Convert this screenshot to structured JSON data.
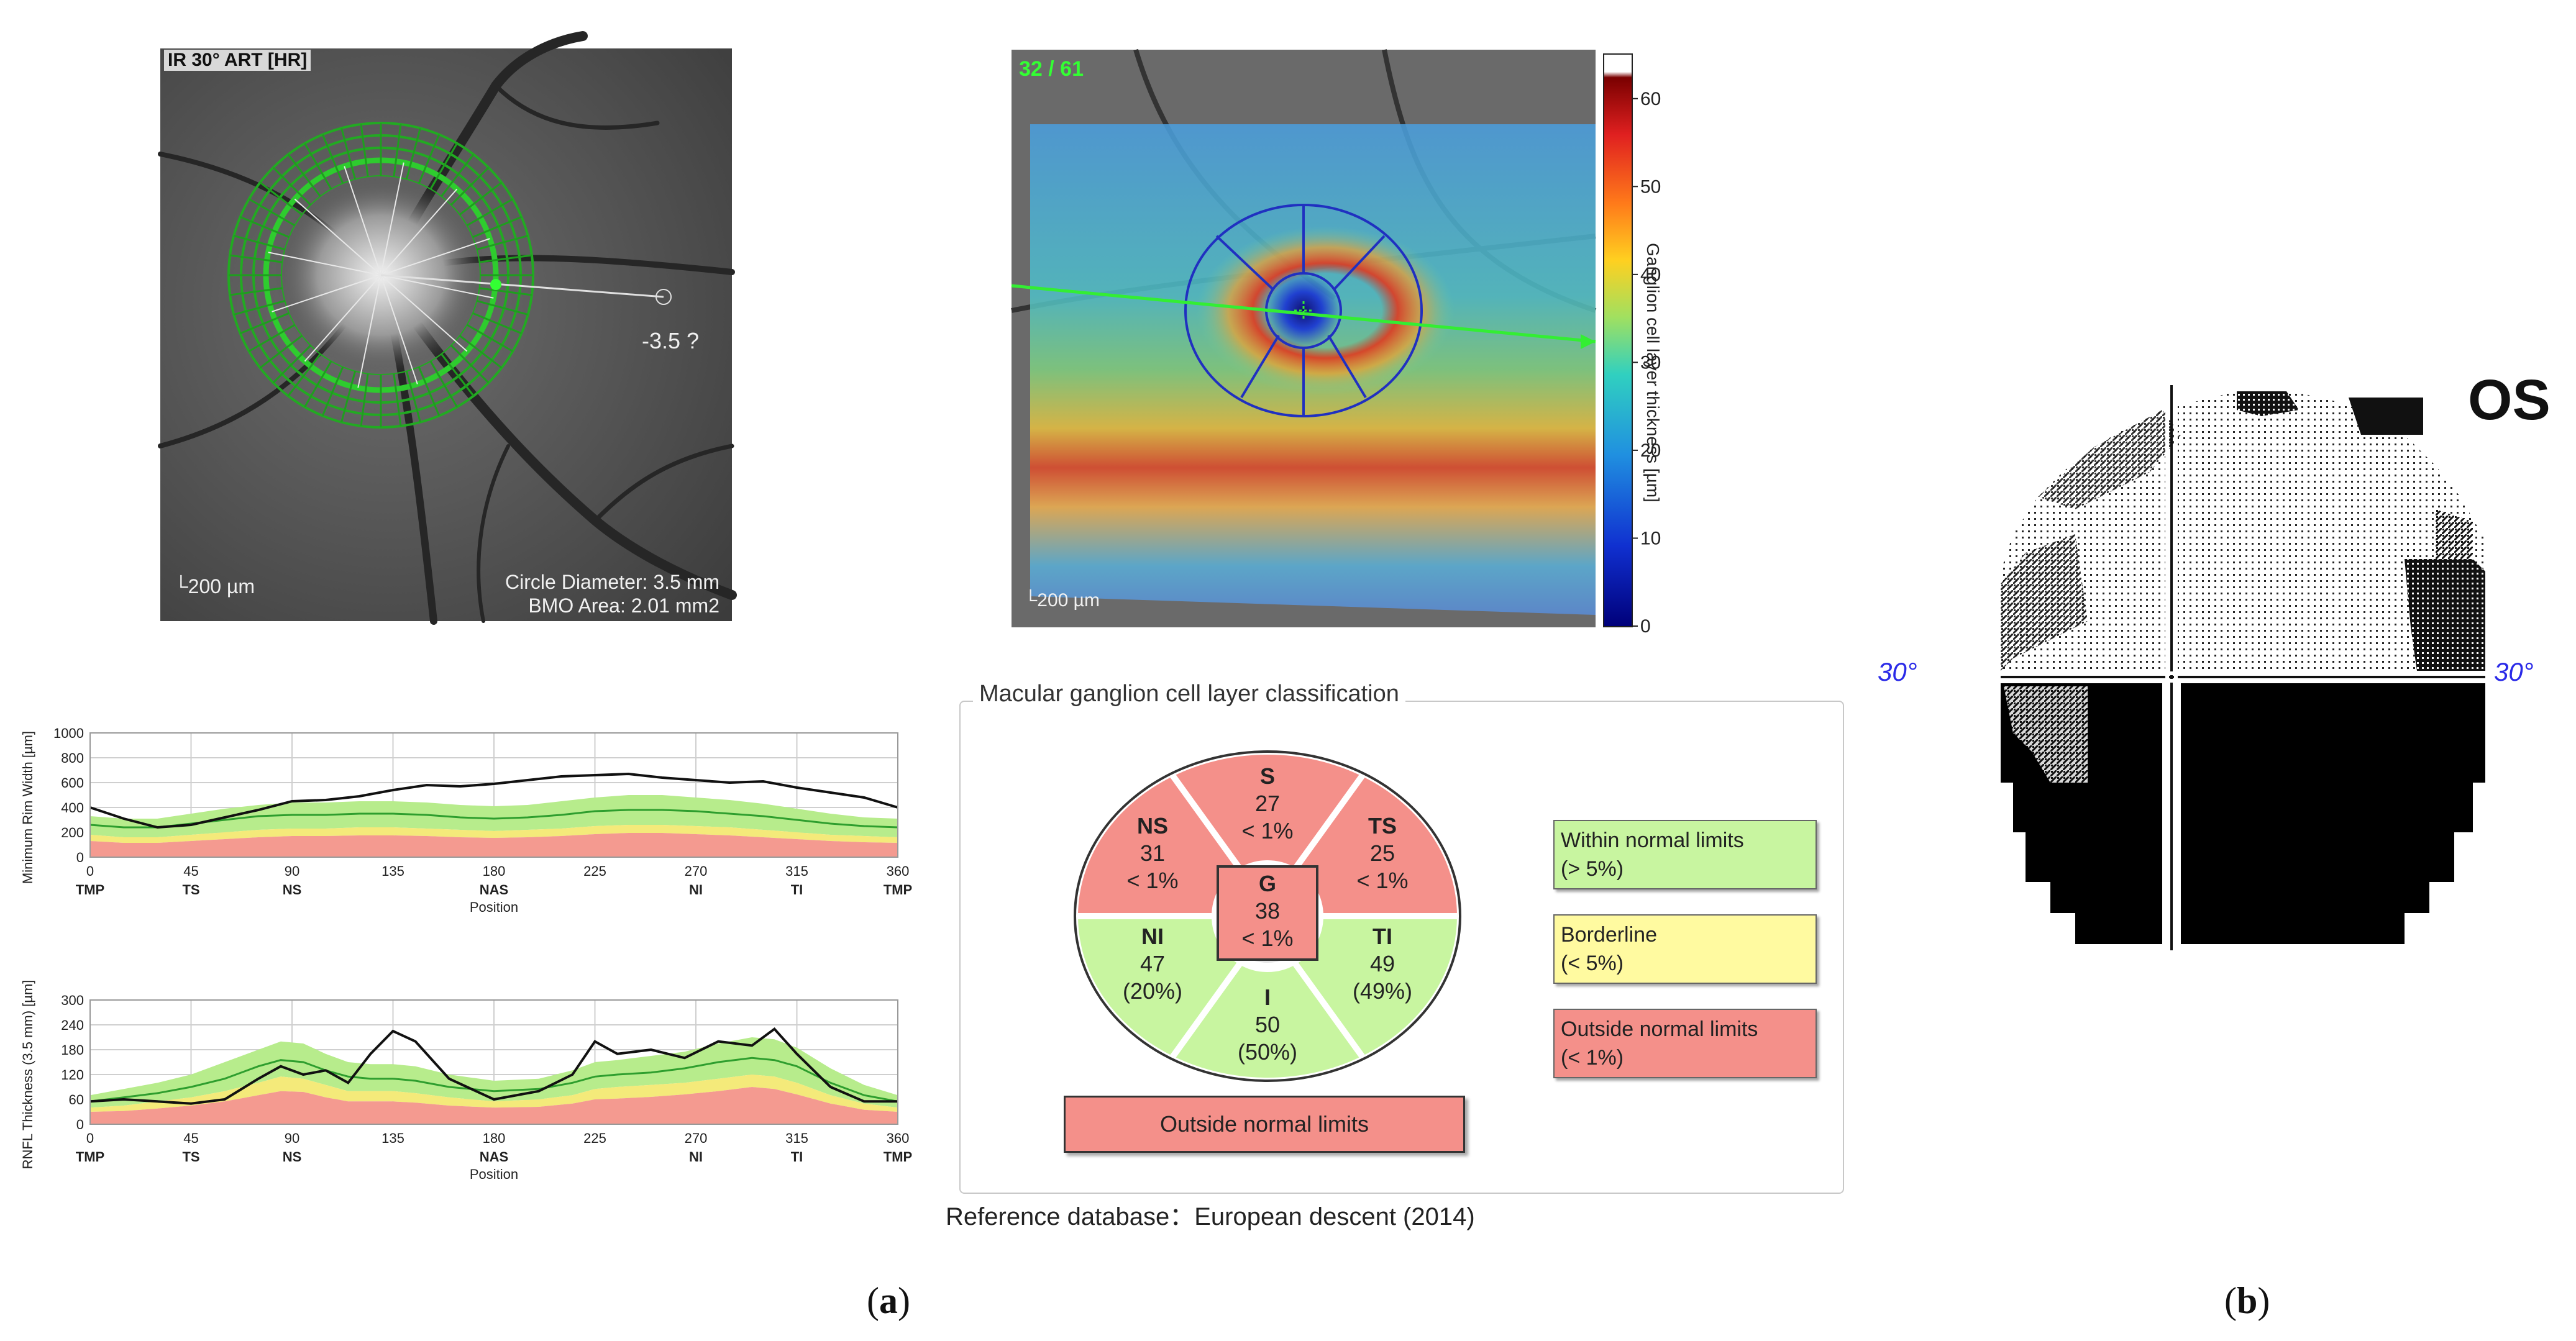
{
  "ir_image": {
    "title": "IR 30° ART [HR]",
    "measurement_label": "-3.5 ?",
    "scale_label": "200 µm",
    "circle_diameter": "Circle Diameter: 3.5 mm",
    "bmo_area": "BMO Area: 2.01 mm2"
  },
  "gcl_map": {
    "counter": "32 / 61",
    "scale_label": "200 µm",
    "colorbar_label": "Ganglion cell layer thickness [µm]",
    "colorbar_ticks": [
      "60",
      "50",
      "40",
      "30",
      "20",
      "10",
      "0"
    ],
    "colorbar_range": [
      0,
      65
    ]
  },
  "chart_data": [
    {
      "type": "line",
      "ylabel": "Minimum Rim Width [µm]",
      "xlabel": "Position",
      "ylim": [
        0,
        1000
      ],
      "yticks": [
        "1000",
        "800",
        "600",
        "400",
        "200",
        "0"
      ],
      "xticks": [
        "0",
        "45",
        "90",
        "135",
        "180",
        "225",
        "270",
        "315",
        "360"
      ],
      "sector_labels": [
        "TMP",
        "TS",
        "NS",
        "NAS",
        "NI",
        "TI",
        "TMP"
      ],
      "sector_positions": [
        0,
        45,
        90,
        180,
        270,
        315,
        360
      ],
      "x": [
        0,
        15,
        30,
        45,
        60,
        75,
        90,
        105,
        120,
        135,
        150,
        165,
        180,
        195,
        210,
        225,
        240,
        255,
        270,
        285,
        300,
        315,
        330,
        345,
        360
      ],
      "series": [
        {
          "name": "measured",
          "values": [
            400,
            310,
            240,
            260,
            320,
            380,
            450,
            460,
            490,
            540,
            580,
            570,
            590,
            620,
            650,
            660,
            670,
            640,
            620,
            600,
            610,
            560,
            520,
            480,
            400
          ]
        },
        {
          "name": "normal_mean",
          "values": [
            260,
            240,
            240,
            270,
            300,
            330,
            340,
            340,
            350,
            350,
            340,
            320,
            310,
            320,
            340,
            370,
            380,
            380,
            370,
            350,
            330,
            300,
            270,
            250,
            240
          ]
        },
        {
          "name": "normal_upper",
          "values": [
            330,
            310,
            310,
            350,
            390,
            420,
            440,
            440,
            450,
            450,
            440,
            420,
            410,
            420,
            450,
            480,
            500,
            500,
            480,
            460,
            430,
            390,
            350,
            320,
            310
          ]
        },
        {
          "name": "normal_lower",
          "values": [
            180,
            160,
            160,
            180,
            200,
            220,
            230,
            230,
            240,
            240,
            230,
            220,
            210,
            220,
            230,
            250,
            260,
            260,
            250,
            240,
            220,
            200,
            180,
            170,
            160
          ]
        },
        {
          "name": "limit_red",
          "values": [
            130,
            115,
            115,
            130,
            145,
            160,
            170,
            170,
            175,
            175,
            170,
            160,
            155,
            160,
            170,
            185,
            195,
            195,
            185,
            175,
            160,
            145,
            130,
            120,
            115
          ]
        }
      ]
    },
    {
      "type": "line",
      "ylabel": "RNFL Thickness (3.5 mm) [µm]",
      "xlabel": "Position",
      "ylim": [
        0,
        300
      ],
      "yticks": [
        "300",
        "240",
        "180",
        "120",
        "60",
        "0"
      ],
      "xticks": [
        "0",
        "45",
        "90",
        "135",
        "180",
        "225",
        "270",
        "315",
        "360"
      ],
      "sector_labels": [
        "TMP",
        "TS",
        "NS",
        "NAS",
        "NI",
        "TI",
        "TMP"
      ],
      "sector_positions": [
        0,
        45,
        90,
        180,
        270,
        315,
        360
      ],
      "x": [
        0,
        15,
        30,
        45,
        60,
        75,
        85,
        95,
        105,
        115,
        125,
        135,
        145,
        160,
        180,
        200,
        215,
        225,
        235,
        250,
        265,
        280,
        295,
        305,
        315,
        330,
        345,
        360
      ],
      "series": [
        {
          "name": "measured",
          "values": [
            55,
            60,
            55,
            50,
            60,
            110,
            140,
            120,
            130,
            100,
            170,
            225,
            200,
            110,
            60,
            80,
            120,
            200,
            170,
            180,
            160,
            200,
            190,
            230,
            170,
            90,
            55,
            55
          ]
        },
        {
          "name": "normal_mean",
          "values": [
            55,
            65,
            75,
            90,
            110,
            140,
            155,
            150,
            130,
            115,
            110,
            110,
            105,
            90,
            80,
            85,
            100,
            115,
            120,
            125,
            135,
            150,
            160,
            155,
            140,
            100,
            70,
            55
          ]
        },
        {
          "name": "normal_upper",
          "values": [
            70,
            85,
            100,
            120,
            150,
            180,
            200,
            195,
            170,
            150,
            145,
            145,
            140,
            120,
            105,
            110,
            130,
            150,
            155,
            165,
            175,
            195,
            210,
            205,
            185,
            135,
            95,
            70
          ]
        },
        {
          "name": "normal_lower",
          "values": [
            40,
            45,
            55,
            65,
            80,
            100,
            115,
            110,
            95,
            80,
            80,
            80,
            75,
            65,
            55,
            60,
            70,
            85,
            90,
            95,
            100,
            110,
            120,
            115,
            100,
            70,
            50,
            40
          ]
        },
        {
          "name": "limit_red",
          "values": [
            30,
            32,
            38,
            45,
            55,
            70,
            80,
            78,
            65,
            55,
            55,
            55,
            52,
            45,
            40,
            42,
            50,
            60,
            62,
            66,
            72,
            80,
            90,
            85,
            72,
            50,
            35,
            30
          ]
        }
      ]
    }
  ],
  "classification": {
    "title": "Macular ganglion cell layer classification",
    "sectors": {
      "S": {
        "label": "S",
        "value": "27",
        "pct": "< 1%",
        "color": "#f4908a"
      },
      "TS": {
        "label": "TS",
        "value": "25",
        "pct": "< 1%",
        "color": "#f4908a"
      },
      "TI": {
        "label": "TI",
        "value": "49",
        "pct": "(49%)",
        "color": "#c8f5a0"
      },
      "I": {
        "label": "I",
        "value": "50",
        "pct": "(50%)",
        "color": "#c8f5a0"
      },
      "NI": {
        "label": "NI",
        "value": "47",
        "pct": "(20%)",
        "color": "#c8f5a0"
      },
      "NS": {
        "label": "NS",
        "value": "31",
        "pct": "< 1%",
        "color": "#f4908a"
      },
      "G": {
        "label": "G",
        "value": "38",
        "pct": "< 1%",
        "color": "#f4908a"
      }
    },
    "legend": [
      {
        "label": "Within normal limits",
        "sub": "(> 5%)",
        "color": "#c8f5a0"
      },
      {
        "label": "Borderline",
        "sub": "(< 5%)",
        "color": "#fffaa0"
      },
      {
        "label": "Outside normal limits",
        "sub": "(< 1%)",
        "color": "#f4908a"
      }
    ],
    "overall": "Outside normal limits",
    "reference_db": "Reference database：European descent (2014)"
  },
  "visual_field": {
    "eye": "OS",
    "left_degree": "30°",
    "right_degree": "30°"
  },
  "panel_labels": {
    "a_open": "(",
    "a": "a",
    "a_close": ")",
    "b_open": "(",
    "b": "b",
    "b_close": ")"
  }
}
